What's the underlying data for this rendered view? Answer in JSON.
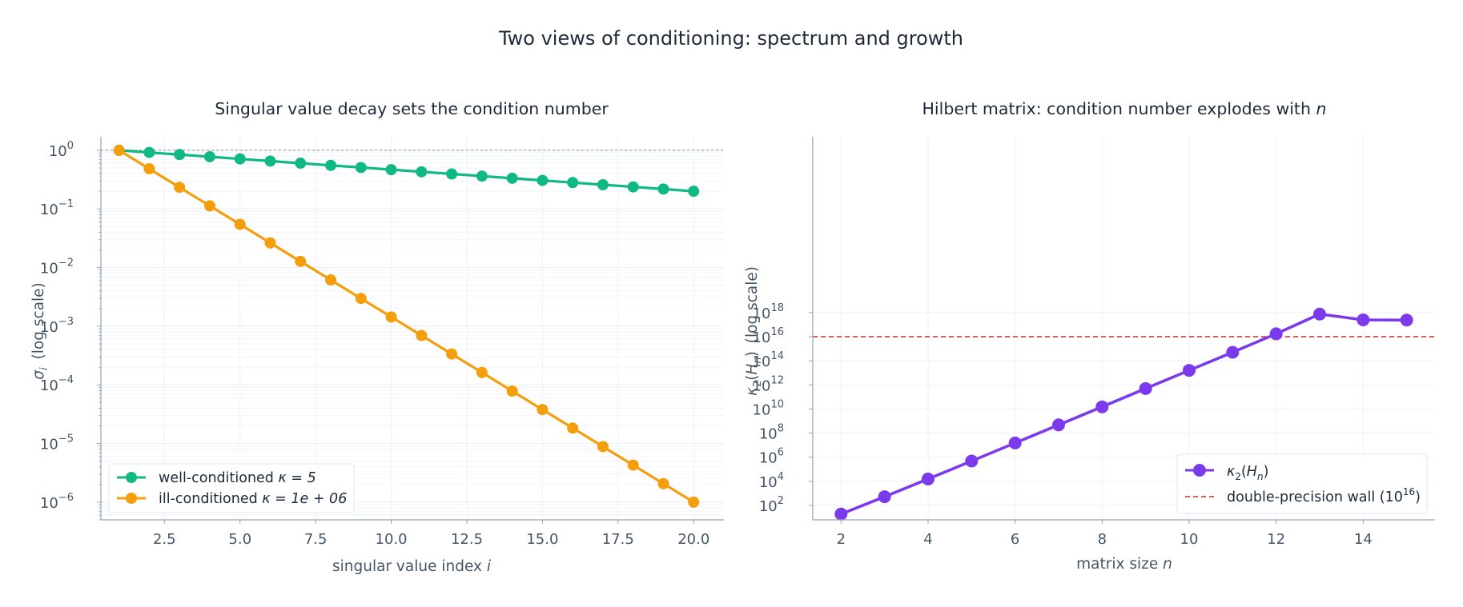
{
  "figure": {
    "title": "Two views of conditioning: spectrum and growth"
  },
  "chart_data": [
    {
      "type": "line",
      "title": "Singular value decay sets the condition number",
      "xlabel_text": "singular value index ",
      "xlabel_var": "i",
      "ylabel_var": "σ",
      "ylabel_sub": "i",
      "ylabel_text": "(log scale)",
      "yscale": "log",
      "xlim": [
        0.4,
        21.0
      ],
      "ylim": [
        5e-07,
        1.7
      ],
      "xticks": [
        2.5,
        5.0,
        7.5,
        10.0,
        12.5,
        15.0,
        17.5,
        20.0
      ],
      "xtick_labels": [
        "2.5",
        "5.0",
        "7.5",
        "10.0",
        "12.5",
        "15.0",
        "17.5",
        "20.0"
      ],
      "ytick_exponents": [
        0,
        -1,
        -2,
        -3,
        -4,
        -5,
        -6
      ],
      "ytick_base": "10",
      "grid": true,
      "reference_line": {
        "y": 1,
        "style": "dotted",
        "color": "#94a3b8"
      },
      "legend": {
        "placement": "lower-left"
      },
      "x": [
        1,
        2,
        3,
        4,
        5,
        6,
        7,
        8,
        9,
        10,
        11,
        12,
        13,
        14,
        15,
        16,
        17,
        18,
        19,
        20
      ],
      "series": [
        {
          "name": "well-conditioned  κ = 5",
          "name_text": "well-conditioned  ",
          "name_math": "κ = 5",
          "color": "#10b981",
          "values": [
            1.0,
            0.9189,
            0.8444,
            0.7759,
            0.713,
            0.6552,
            0.6021,
            0.5532,
            0.5084,
            0.4671,
            0.4293,
            0.3945,
            0.3625,
            0.3331,
            0.3061,
            0.2813,
            0.2585,
            0.2375,
            0.2182,
            0.2005
          ]
        },
        {
          "name": "ill-conditioned  κ = 1e + 06",
          "name_text": "ill-conditioned  ",
          "name_math": "κ = 1e + 06",
          "color": "#f59e0b",
          "values": [
            1.0,
            0.4833,
            0.2336,
            0.1129,
            0.05456,
            0.02637,
            0.01274,
            0.006158,
            0.002976,
            0.001438,
            0.0006952,
            0.000336,
            0.0001624,
            7.848e-05,
            3.793e-05,
            1.833e-05,
            8.859e-06,
            4.281e-06,
            2.069e-06,
            1e-06
          ]
        }
      ]
    },
    {
      "type": "line",
      "title_text": "Hilbert matrix: condition number explodes with ",
      "title_var": "n",
      "xlabel_text": "matrix size ",
      "xlabel_var": "n",
      "ylabel_text": "(log scale)",
      "ylabel_var": "κ",
      "ylabel_sub": "2",
      "ylabel_arg": "H",
      "ylabel_argsub": "n",
      "yscale": "log",
      "xlim": [
        1.35,
        15.65
      ],
      "ylim": [
        0.8,
        32.6
      ],
      "xticks": [
        2,
        4,
        6,
        8,
        10,
        12,
        14
      ],
      "xtick_labels": [
        "2",
        "4",
        "6",
        "8",
        "10",
        "12",
        "14"
      ],
      "ytick_exponents": [
        2,
        4,
        6,
        8,
        10,
        12,
        14,
        16,
        18
      ],
      "ytick_base": "10",
      "grid": true,
      "reference_line": {
        "log10_y": 16,
        "style": "dashed",
        "color": "#dc2626",
        "label_text": "double-precision wall  (10",
        "label_sup": "16",
        "label_close": ")"
      },
      "legend": {
        "placement": "lower-right"
      },
      "x": [
        2,
        3,
        4,
        5,
        6,
        7,
        8,
        9,
        10,
        11,
        12,
        13,
        14,
        15
      ],
      "series": [
        {
          "name": "κ2(Hn)",
          "color": "#7c3aed",
          "log10_values": [
            1.28,
            2.72,
            4.19,
            5.68,
            7.18,
            8.68,
            10.18,
            11.7,
            13.21,
            14.71,
            16.24,
            17.88,
            17.4,
            17.38
          ]
        }
      ]
    }
  ]
}
